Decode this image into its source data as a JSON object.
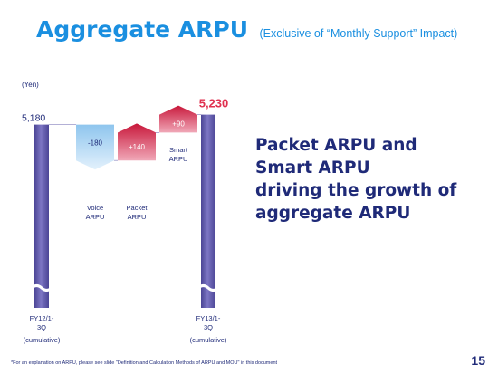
{
  "title": "Aggregate ARPU",
  "subtitle": "(Exclusive of “Monthly Support” Impact)",
  "side_text": [
    "Packet ARPU and",
    "Smart ARPU",
    "driving the growth of",
    "aggregate ARPU"
  ],
  "footnote": "*For an explanation on ARPU, please see slide \"Definition and Calculation Methods of ARPU and MOU\" in this document",
  "page_number": "15",
  "colors": {
    "title": "#1a8fe0",
    "navy": "#1f2a78",
    "total_bar": "#6b63b3",
    "voice_bar": "#a9d3f2",
    "packet_bar": "#e0304f",
    "highlight": "#e0304f"
  },
  "chart_data": {
    "type": "bar",
    "subtype": "waterfall",
    "yunit": "(Yen)",
    "axis_break": true,
    "categories": [
      {
        "label_lines": [
          "FY12/1-",
          "3Q",
          "(cumulative)"
        ]
      },
      {
        "label_lines": [
          "Voice",
          "ARPU"
        ]
      },
      {
        "label_lines": [
          "Packet",
          "ARPU"
        ]
      },
      {
        "label_lines": [
          "Smart",
          "ARPU"
        ]
      },
      {
        "label_lines": [
          "FY13/1-",
          "3Q",
          "(cumulative)"
        ]
      }
    ],
    "bars": [
      {
        "kind": "total",
        "value": 5180,
        "label": "5,180"
      },
      {
        "kind": "delta",
        "value": -180,
        "label": "-180"
      },
      {
        "kind": "delta",
        "value": 140,
        "label": "+140"
      },
      {
        "kind": "delta",
        "value": 90,
        "label": "+90"
      },
      {
        "kind": "total",
        "value": 5230,
        "label": "5,230"
      }
    ],
    "grid": false,
    "legend": "none"
  }
}
